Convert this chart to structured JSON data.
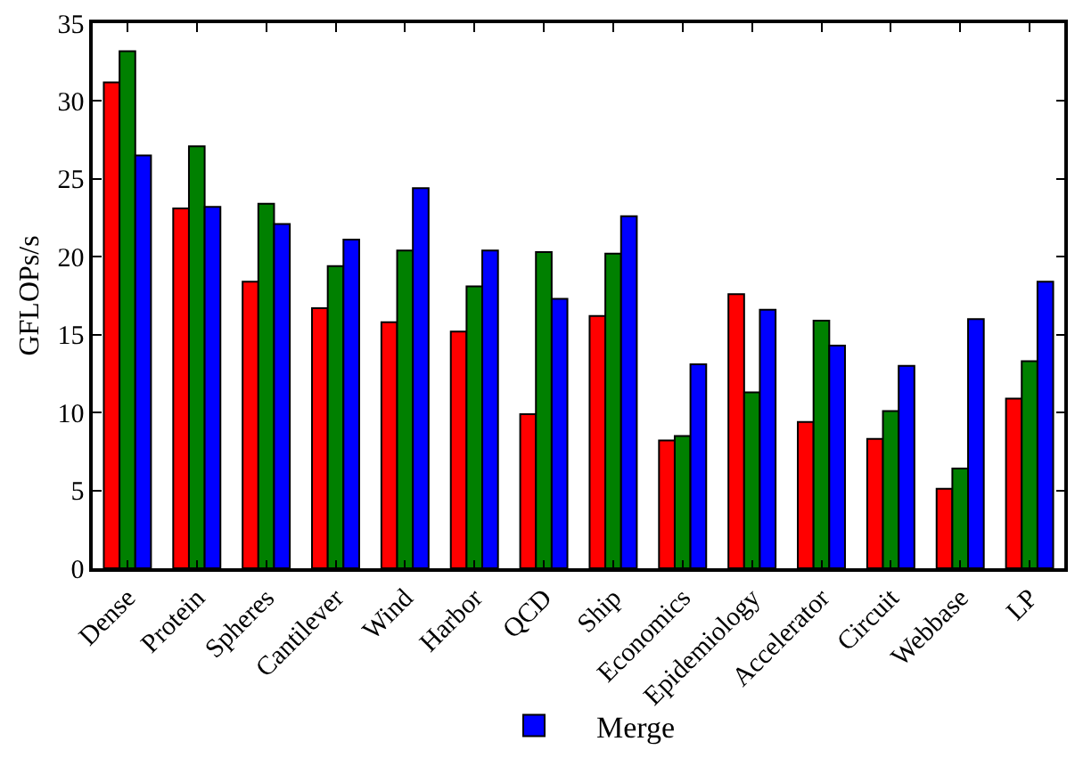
{
  "chart_data": {
    "type": "bar",
    "ylabel": "GFLOPs/s",
    "categories": [
      "Dense",
      "Protein",
      "Spheres",
      "Cantilever",
      "Wind",
      "Harbor",
      "QCD",
      "Ship",
      "Economics",
      "Epidemiology",
      "Accelerator",
      "Circuit",
      "Webbase",
      "LP"
    ],
    "series": [
      {
        "color": "#ff0000",
        "values": [
          31.2,
          23.1,
          18.4,
          16.7,
          15.8,
          15.2,
          9.9,
          16.2,
          8.2,
          17.6,
          9.4,
          8.3,
          5.1,
          10.9
        ]
      },
      {
        "color": "#008000",
        "values": [
          33.2,
          27.1,
          23.4,
          19.4,
          20.4,
          18.1,
          20.3,
          20.2,
          8.5,
          11.3,
          15.9,
          10.1,
          6.4,
          13.3
        ]
      },
      {
        "name": "Merge",
        "color": "#0000ff",
        "values": [
          26.5,
          23.2,
          22.1,
          21.1,
          24.4,
          20.4,
          17.3,
          22.6,
          13.1,
          16.6,
          14.3,
          13.0,
          16.0,
          18.4
        ]
      }
    ],
    "ylim": [
      0,
      35
    ],
    "yticks": [
      0,
      5,
      10,
      15,
      20,
      25,
      30,
      35
    ],
    "legend": "bottom"
  }
}
